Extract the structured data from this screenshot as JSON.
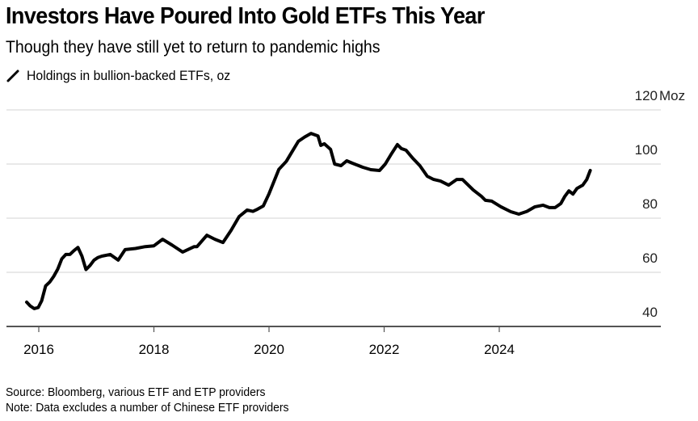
{
  "header": {
    "title": "Investors Have Poured Into Gold ETFs This Year",
    "subtitle": "Though they have still yet to return to pandemic highs",
    "legend_label": "Holdings in bullion-backed ETFs, oz"
  },
  "footer": {
    "source": "Source: Bloomberg, various ETF and ETP providers",
    "note": "Note: Data excludes a number of Chinese ETF providers"
  },
  "colors": {
    "line": "#000000",
    "grid": "#e2e2e2",
    "axis": "#555555"
  },
  "chart_data": {
    "type": "line",
    "title": "Investors Have Poured Into Gold ETFs This Year",
    "subtitle": "Though they have still yet to return to pandemic highs",
    "xlabel": "",
    "ylabel": "Moz",
    "ylim": [
      40,
      120
    ],
    "xlim": [
      2015.44,
      2026.8
    ],
    "grid": true,
    "legend_position": "top-left",
    "y_ticks": [
      {
        "value": 120,
        "label": "120"
      },
      {
        "value": 100,
        "label": "100"
      },
      {
        "value": 80,
        "label": "80"
      },
      {
        "value": 60,
        "label": "60"
      },
      {
        "value": 40,
        "label": "40"
      }
    ],
    "y_unit_label": "Moz",
    "x_ticks": [
      {
        "value": 2016,
        "label": "2016"
      },
      {
        "value": 2018,
        "label": "2018"
      },
      {
        "value": 2020,
        "label": "2020"
      },
      {
        "value": 2022,
        "label": "2022"
      },
      {
        "value": 2024,
        "label": "2024"
      }
    ],
    "series": [
      {
        "name": "Holdings in bullion-backed ETFs, oz",
        "x": [
          2015.79,
          2015.85,
          2015.92,
          2015.99,
          2016.05,
          2016.12,
          2016.19,
          2016.26,
          2016.33,
          2016.4,
          2016.47,
          2016.54,
          2016.61,
          2016.68,
          2016.75,
          2016.82,
          2016.89,
          2016.96,
          2017.03,
          2017.1,
          2017.24,
          2017.38,
          2017.5,
          2017.68,
          2017.85,
          2018.0,
          2018.15,
          2018.32,
          2018.5,
          2018.7,
          2018.75,
          2018.92,
          2019.06,
          2019.2,
          2019.34,
          2019.48,
          2019.62,
          2019.72,
          2019.8,
          2019.9,
          2020.0,
          2020.17,
          2020.3,
          2020.37,
          2020.51,
          2020.62,
          2020.73,
          2020.85,
          2020.9,
          2020.96,
          2021.07,
          2021.14,
          2021.25,
          2021.35,
          2021.45,
          2021.63,
          2021.77,
          2021.92,
          2022.02,
          2022.13,
          2022.23,
          2022.3,
          2022.38,
          2022.5,
          2022.62,
          2022.75,
          2022.86,
          2022.98,
          2023.12,
          2023.26,
          2023.36,
          2023.55,
          2023.69,
          2023.76,
          2023.87,
          2024.03,
          2024.2,
          2024.34,
          2024.48,
          2024.62,
          2024.76,
          2024.87,
          2024.97,
          2025.07,
          2025.14,
          2025.21,
          2025.28,
          2025.35,
          2025.45,
          2025.52,
          2025.58
        ],
        "values": [
          49.0,
          47.6,
          46.6,
          47.0,
          49.5,
          55.0,
          56.4,
          58.5,
          61.2,
          65.0,
          66.6,
          66.6,
          68.0,
          69.2,
          66.0,
          61.0,
          62.5,
          64.5,
          65.5,
          66.0,
          66.6,
          64.5,
          68.4,
          68.8,
          69.5,
          69.8,
          72.2,
          70.0,
          67.5,
          69.5,
          69.5,
          73.7,
          72.2,
          71.0,
          75.5,
          80.6,
          83.0,
          82.5,
          83.3,
          84.5,
          89.0,
          98.0,
          101.0,
          103.5,
          108.4,
          110.0,
          111.3,
          110.4,
          106.9,
          107.5,
          105.4,
          100.0,
          99.4,
          101.2,
          100.3,
          98.8,
          97.9,
          97.6,
          100.0,
          103.9,
          107.2,
          105.7,
          105.1,
          102.1,
          99.4,
          95.5,
          94.3,
          93.7,
          92.2,
          94.3,
          94.3,
          90.4,
          88.1,
          86.6,
          86.3,
          84.2,
          82.4,
          81.5,
          82.5,
          84.2,
          84.8,
          83.9,
          83.9,
          85.4,
          88.1,
          90.1,
          88.9,
          91.0,
          92.2,
          94.3,
          97.6
        ]
      }
    ]
  }
}
